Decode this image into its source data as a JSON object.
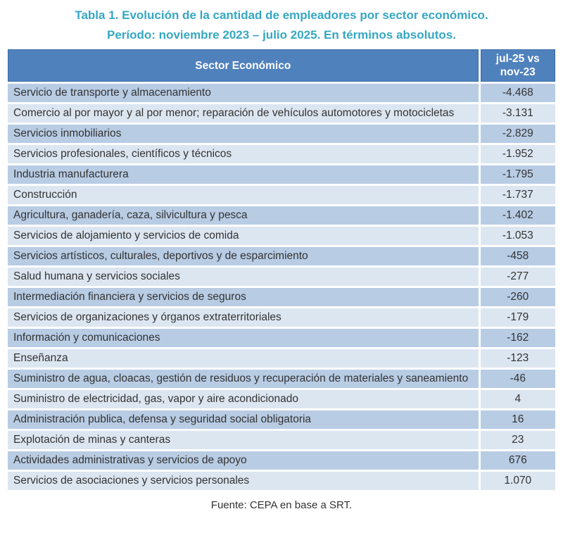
{
  "title": {
    "line1": "Tabla 1. Evolución de la cantidad de empleadores por sector económico.",
    "line2": "Período: noviembre 2023 – julio 2025. En términos absolutos."
  },
  "table": {
    "header": {
      "sector": "Sector Económico",
      "value": "jul-25 vs nov-23"
    },
    "rows": [
      {
        "sector": "Servicio de transporte y almacenamiento",
        "value": "-4.468"
      },
      {
        "sector": "Comercio al por mayor y al por menor; reparación de vehículos automotores y motocicletas",
        "value": "-3.131"
      },
      {
        "sector": "Servicios inmobiliarios",
        "value": "-2.829"
      },
      {
        "sector": "Servicios profesionales, científicos y técnicos",
        "value": "-1.952"
      },
      {
        "sector": "Industria manufacturera",
        "value": "-1.795"
      },
      {
        "sector": "Construcción",
        "value": "-1.737"
      },
      {
        "sector": "Agricultura, ganadería, caza, silvicultura y pesca",
        "value": "-1.402"
      },
      {
        "sector": "Servicios de alojamiento y servicios de comida",
        "value": "-1.053"
      },
      {
        "sector": "Servicios artísticos, culturales, deportivos y de esparcimiento",
        "value": "-458"
      },
      {
        "sector": "Salud humana y servicios sociales",
        "value": "-277"
      },
      {
        "sector": "Intermediación financiera y servicios de seguros",
        "value": "-260"
      },
      {
        "sector": "Servicios de organizaciones y órganos extraterritoriales",
        "value": "-179"
      },
      {
        "sector": "Información y comunicaciones",
        "value": "-162"
      },
      {
        "sector": "Enseñanza",
        "value": "-123"
      },
      {
        "sector": "Suministro de agua, cloacas, gestión de residuos y recuperación de materiales y saneamiento",
        "value": "-46"
      },
      {
        "sector": "Suministro de electricidad, gas, vapor y aire acondicionado",
        "value": "4"
      },
      {
        "sector": "Administración publica, defensa y seguridad social obligatoria",
        "value": "16"
      },
      {
        "sector": "Explotación de minas y canteras",
        "value": "23"
      },
      {
        "sector": "Actividades administrativas y servicios de apoyo",
        "value": "676"
      },
      {
        "sector": "Servicios de asociaciones y servicios personales",
        "value": "1.070"
      }
    ]
  },
  "footer": {
    "source": "Fuente: CEPA en base a SRT."
  },
  "colors": {
    "title_teal": "#35A7C2",
    "header_bg": "#4F81BD",
    "header_border": "#3C6CA6",
    "row_dark": "#B8CCE4",
    "row_light": "#DCE6F1",
    "text": "#333333"
  }
}
